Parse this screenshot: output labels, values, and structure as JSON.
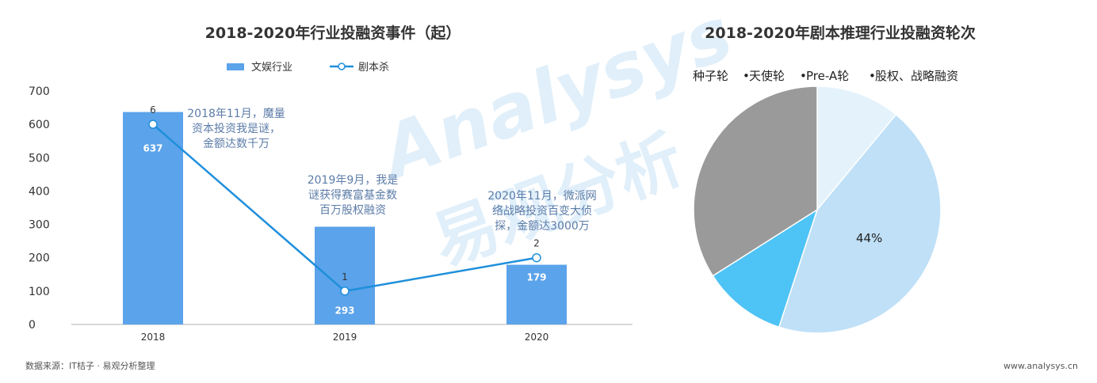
{
  "watermark": {
    "brand": "Analysys",
    "cn": "易观分析"
  },
  "chart_data": [
    {
      "type": "bar",
      "title": "2018-2020年行业投融资事件（起）",
      "categories": [
        "2018",
        "2019",
        "2020"
      ],
      "ylim": [
        0,
        700
      ],
      "yticks": [
        0,
        100,
        200,
        300,
        400,
        500,
        600,
        700
      ],
      "grid": false,
      "legend_position": "top",
      "series": [
        {
          "name": "文娱行业",
          "kind": "bar",
          "values": [
            637,
            293,
            179
          ],
          "color": "#5ba3ea"
        },
        {
          "name": "剧本杀",
          "kind": "line",
          "values": [
            6,
            1,
            2
          ],
          "color": "#1f8fdb"
        }
      ],
      "annotations": [
        {
          "lines": [
            "2018年11月，魔量",
            "资本投资我是谜，",
            "金额达数千万"
          ]
        },
        {
          "lines": [
            "2019年9月，我是",
            "谜获得赛富基金数",
            "百万股权融资"
          ]
        },
        {
          "lines": [
            "2020年11月，微派网",
            "络战略投资百变大侦",
            "探，金额达3000万"
          ]
        }
      ]
    },
    {
      "type": "pie",
      "title": "2018-2020年剧本推理行业投融资轮次",
      "legend_position": "top",
      "slices": [
        {
          "name": "种子轮",
          "value": 11,
          "color": "#e4f2fb"
        },
        {
          "name": "天使轮",
          "value": 44,
          "color": "#bfe0f7",
          "label": "44%"
        },
        {
          "name": "Pre-A轮",
          "value": 11,
          "color": "#4ec3f5"
        },
        {
          "name": "股权、战略融资",
          "value": 34,
          "color": "#9a9a9a"
        }
      ]
    }
  ],
  "footer": {
    "source": "数据来源：IT桔子 · 易观分析整理",
    "website": "www.analysys.cn"
  }
}
